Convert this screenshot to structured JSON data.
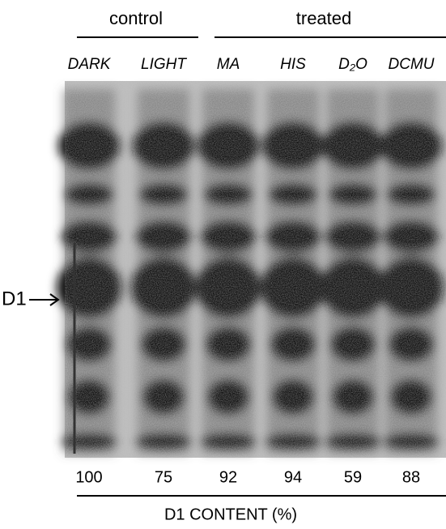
{
  "groups": [
    {
      "label": "control"
    },
    {
      "label": "treated"
    }
  ],
  "lanes": [
    {
      "label": "DARK",
      "d1_content": 100
    },
    {
      "label": "LIGHT",
      "d1_content": 75
    },
    {
      "label": "MA",
      "d1_content": 92
    },
    {
      "label": "HIS",
      "d1_content": 94
    },
    {
      "label": "D₂O",
      "d1_content": 59
    },
    {
      "label": "DCMU",
      "d1_content": 88
    }
  ],
  "marker": {
    "label": "D1"
  },
  "footer": {
    "label": "D1 CONTENT (%)"
  }
}
